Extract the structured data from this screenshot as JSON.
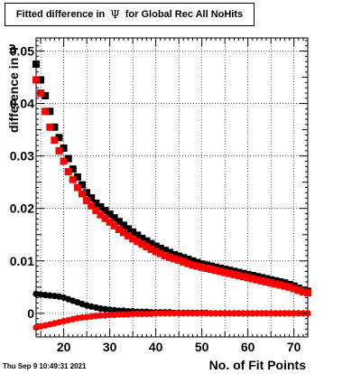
{
  "chart_data": {
    "type": "scatter",
    "title_parts": [
      "Fitted difference in",
      "Ψ",
      "for Global Rec All NoHits"
    ],
    "xlabel": "No. of Fit Points",
    "ylabel": "difference in Ψ",
    "xlim": [
      14,
      73
    ],
    "ylim": [
      -0.0045,
      0.0525
    ],
    "xticks": [
      20,
      30,
      40,
      50,
      60,
      70
    ],
    "yticks": [
      0,
      0.01,
      0.02,
      0.03,
      0.04,
      0.05
    ],
    "ytick_labels": [
      "0",
      "0.01",
      "0.02",
      "0.03",
      "0.04",
      "0.05"
    ],
    "grid": true,
    "series": [
      {
        "color": "#000000",
        "marker": "square",
        "x": [
          14,
          15,
          16,
          17,
          18,
          19,
          20,
          21,
          22,
          23,
          24,
          25,
          26,
          27,
          28,
          29,
          30,
          31,
          32,
          33,
          34,
          35,
          36,
          37,
          38,
          39,
          40,
          41,
          42,
          43,
          44,
          45,
          46,
          47,
          48,
          49,
          50,
          51,
          52,
          53,
          54,
          55,
          56,
          57,
          58,
          59,
          60,
          61,
          62,
          63,
          64,
          65,
          66,
          67,
          68,
          69,
          70,
          71,
          72,
          73
        ],
        "y": [
          0.0475,
          0.0445,
          0.0415,
          0.0385,
          0.0355,
          0.0335,
          0.0315,
          0.0295,
          0.0275,
          0.026,
          0.0245,
          0.023,
          0.022,
          0.021,
          0.0203,
          0.0196,
          0.0189,
          0.0182,
          0.0175,
          0.0168,
          0.0161,
          0.0155,
          0.0149,
          0.0143,
          0.0138,
          0.0133,
          0.0128,
          0.0124,
          0.012,
          0.0116,
          0.0112,
          0.0109,
          0.0106,
          0.0103,
          0.01,
          0.0097,
          0.0094,
          0.0092,
          0.009,
          0.0088,
          0.0086,
          0.0084,
          0.0082,
          0.008,
          0.0078,
          0.0076,
          0.0074,
          0.0072,
          0.007,
          0.0068,
          0.0066,
          0.0064,
          0.0062,
          0.006,
          0.0058,
          0.0055,
          0.0052,
          0.0048,
          0.0044,
          0.0042
        ]
      },
      {
        "color": "#ff0000",
        "marker": "square",
        "x": [
          14,
          15,
          16,
          17,
          18,
          19,
          20,
          21,
          22,
          23,
          24,
          25,
          26,
          27,
          28,
          29,
          30,
          31,
          32,
          33,
          34,
          35,
          36,
          37,
          38,
          39,
          40,
          41,
          42,
          43,
          44,
          45,
          46,
          47,
          48,
          49,
          50,
          51,
          52,
          53,
          54,
          55,
          56,
          57,
          58,
          59,
          60,
          61,
          62,
          63,
          64,
          65,
          66,
          67,
          68,
          69,
          70,
          71,
          72,
          73
        ],
        "y": [
          0.0445,
          0.042,
          0.0385,
          0.0355,
          0.033,
          0.031,
          0.029,
          0.027,
          0.0255,
          0.024,
          0.0228,
          0.0215,
          0.0205,
          0.0196,
          0.0188,
          0.0181,
          0.0174,
          0.0167,
          0.016,
          0.0154,
          0.0148,
          0.0142,
          0.0137,
          0.0132,
          0.0127,
          0.0122,
          0.0118,
          0.0114,
          0.011,
          0.0107,
          0.0104,
          0.0101,
          0.0098,
          0.0095,
          0.0092,
          0.009,
          0.0088,
          0.0086,
          0.0084,
          0.0082,
          0.008,
          0.0078,
          0.0076,
          0.0074,
          0.0072,
          0.007,
          0.0068,
          0.0066,
          0.0064,
          0.0062,
          0.006,
          0.0058,
          0.0056,
          0.0054,
          0.0052,
          0.005,
          0.0047,
          0.0044,
          0.0041,
          0.0039
        ]
      },
      {
        "color": "#000000",
        "marker": "circle",
        "x": [
          14,
          15,
          16,
          17,
          18,
          19,
          20,
          21,
          22,
          23,
          24,
          25,
          26,
          27,
          28,
          29,
          30,
          31,
          32,
          33,
          34,
          35,
          36,
          37,
          38,
          39,
          40,
          41,
          42,
          43,
          44,
          45,
          46,
          47,
          48,
          49,
          50,
          51,
          52,
          53,
          54,
          55,
          56,
          57,
          58,
          59,
          60,
          61,
          62,
          63,
          64,
          65,
          66,
          67,
          68,
          69,
          70,
          71,
          72,
          73
        ],
        "y": [
          0.0037,
          0.0036,
          0.0035,
          0.0034,
          0.0033,
          0.0032,
          0.003,
          0.0027,
          0.0024,
          0.0021,
          0.0018,
          0.0015,
          0.0013,
          0.0011,
          0.0009,
          0.0008,
          0.0007,
          0.0006,
          0.0005,
          0.0005,
          0.0004,
          0.0004,
          0.0003,
          0.0003,
          0.0003,
          0.0002,
          0.0002,
          0.0002,
          0.0002,
          0.0002,
          0.0001,
          0.0001,
          0.0001,
          0.0001,
          0.0001,
          0.0001,
          0.0001,
          0.0001,
          0,
          0,
          0,
          0,
          0,
          0,
          0,
          0,
          0,
          0,
          0,
          0,
          0,
          0,
          0,
          0,
          0,
          0,
          0,
          0,
          0,
          0
        ]
      },
      {
        "color": "#ff0000",
        "marker": "circle",
        "x": [
          14,
          15,
          16,
          17,
          18,
          19,
          20,
          21,
          22,
          23,
          24,
          25,
          26,
          27,
          28,
          29,
          30,
          31,
          32,
          33,
          34,
          35,
          36,
          37,
          38,
          39,
          40,
          41,
          42,
          43,
          44,
          45,
          46,
          47,
          48,
          49,
          50,
          51,
          52,
          53,
          54,
          55,
          56,
          57,
          58,
          59,
          60,
          61,
          62,
          63,
          64,
          65,
          66,
          67,
          68,
          69,
          70,
          71,
          72,
          73
        ],
        "y": [
          -0.0027,
          -0.0025,
          -0.0023,
          -0.0021,
          -0.0019,
          -0.0017,
          -0.0015,
          -0.0013,
          -0.0011,
          -0.0009,
          -0.0008,
          -0.0007,
          -0.0006,
          -0.0005,
          -0.0004,
          -0.0004,
          -0.0003,
          -0.0003,
          -0.0002,
          -0.0002,
          -0.0002,
          -0.0001,
          -0.0001,
          -0.0001,
          -0.0001,
          -0.0001,
          0,
          0,
          0,
          0,
          0,
          0,
          0,
          0,
          0,
          0,
          0,
          0,
          0,
          0,
          0,
          0,
          0,
          0,
          0,
          0,
          0,
          0,
          0,
          0,
          0,
          0,
          0,
          0,
          0,
          0,
          0,
          0,
          0,
          0
        ]
      }
    ]
  },
  "footer": {
    "timestamp": "Thu Sep  9 10:49:31 2021"
  }
}
